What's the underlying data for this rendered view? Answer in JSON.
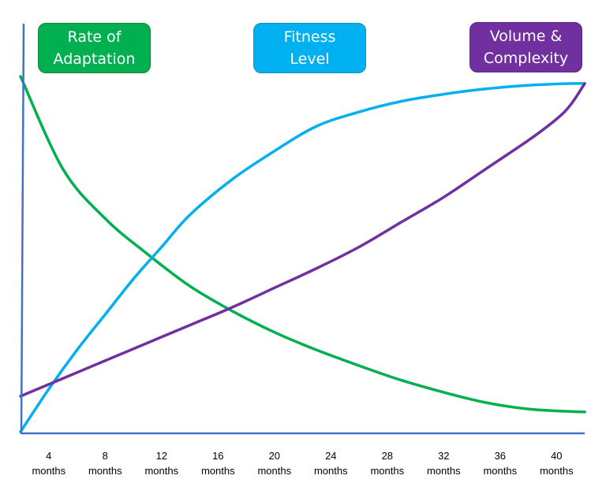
{
  "chart_data": {
    "type": "line",
    "title": "",
    "xlabel": "",
    "ylabel": "",
    "categories": [
      "4\nmonths",
      "8\nmonths",
      "12\nmonths",
      "16\nmonths",
      "20\nmonths",
      "24\nmonths",
      "28\nmonths",
      "32\nmonths",
      "36\nmonths",
      "40\nmonths"
    ],
    "x_ticks": [
      4,
      8,
      12,
      16,
      20,
      24,
      28,
      32,
      36,
      40
    ],
    "xlim": [
      2,
      42
    ],
    "ylim": [
      0,
      100
    ],
    "grid": false,
    "y_ticks_shown": false,
    "legend_position": "top",
    "series": [
      {
        "name": "Rate of\nAdaptation",
        "color": "#00b050",
        "x": [
          2,
          5,
          8,
          11,
          14,
          17,
          20,
          23,
          26,
          29,
          32,
          35,
          38,
          41,
          42
        ],
        "y": [
          100,
          74,
          60,
          50,
          41,
          34,
          28,
          23,
          18.6,
          14.5,
          11.1,
          8.2,
          6.4,
          5.7,
          5.6
        ]
      },
      {
        "name": "Fitness\nLevel",
        "color": "#00b0f0",
        "x": [
          2,
          4,
          6,
          8,
          10,
          12,
          14,
          17,
          20,
          23,
          26,
          29,
          32,
          35,
          38,
          41,
          42
        ],
        "y": [
          0,
          12,
          23,
          33,
          43,
          52,
          61,
          71,
          79,
          86,
          90,
          93,
          95,
          96.5,
          97.5,
          98,
          98
        ]
      },
      {
        "name": "Volume &\nComplexity",
        "color": "#7030a0",
        "x": [
          2,
          5,
          8,
          11,
          14,
          17,
          20,
          23,
          26,
          29,
          32,
          35,
          38,
          40,
          41,
          42
        ],
        "y": [
          10,
          15,
          20,
          25,
          30,
          35,
          40.5,
          46,
          52,
          59,
          66,
          74,
          82,
          88,
          92,
          98
        ]
      }
    ]
  }
}
